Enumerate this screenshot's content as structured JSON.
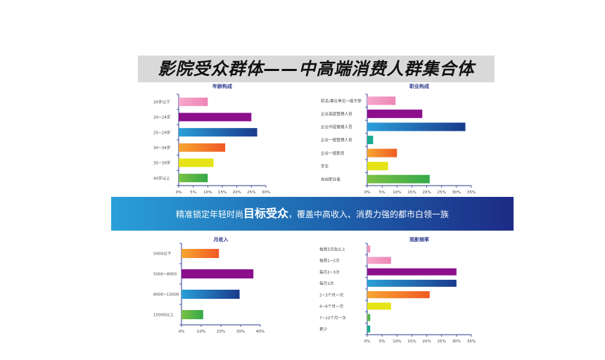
{
  "page": {
    "title": "影院受众群体——中高端消费人群集合体",
    "banner": {
      "pre": "精准锁定年轻时尚",
      "highlight": "目标受众",
      "post": "，覆盖中高收入、消费力强的都市白领一族"
    }
  },
  "colors": {
    "pink": "#ee86b6",
    "purple": "#8c0f8c",
    "blue": "#1a3a8c",
    "teal": "#1bab8e",
    "orange": "#f05a24",
    "yellow": "#e6e317",
    "green": "#34a94a",
    "title_color": "#2b3a8c"
  },
  "chart_data": [
    {
      "type": "bar",
      "orientation": "horizontal",
      "title": "年龄构成",
      "categories": [
        "20岁以下",
        "20~24岁",
        "25~29岁",
        "30~34岁",
        "35~39岁",
        "40岁以上"
      ],
      "values": [
        10,
        25,
        27,
        16,
        12,
        10
      ],
      "colors": [
        "pink",
        "purple",
        "blue",
        "orange",
        "yellow",
        "green"
      ],
      "xlim": [
        0,
        30
      ],
      "xticks": [
        "0%",
        "5%",
        "10%",
        "15%",
        "20%",
        "25%",
        "30%"
      ]
    },
    {
      "type": "bar",
      "orientation": "horizontal",
      "title": "职业构成",
      "categories": [
        "机关/事业单位一般干部",
        "企业高层管理人员",
        "企业中层管理人员",
        "企业一般管理人员",
        "企业一般职员",
        "学生",
        "自由职业者"
      ],
      "values": [
        9.5,
        18.5,
        33,
        2,
        10,
        7,
        21
      ],
      "colors": [
        "pink",
        "purple",
        "blue",
        "teal",
        "orange",
        "yellow",
        "green"
      ],
      "xlim": [
        0,
        35
      ],
      "xticks": [
        "0%",
        "5%",
        "10%",
        "15%",
        "20%",
        "25%",
        "30%",
        "35%"
      ]
    },
    {
      "type": "bar",
      "orientation": "horizontal",
      "title": "月收入",
      "categories": [
        "5000以下",
        "5000~8000",
        "8000~15000",
        "15000以上"
      ],
      "values": [
        19,
        36.5,
        29.5,
        11
      ],
      "colors": [
        "orange",
        "purple",
        "blue",
        "green"
      ],
      "xlim": [
        0,
        40
      ],
      "xticks": [
        "0%",
        "10%",
        "20%",
        "30%",
        "40%"
      ]
    },
    {
      "type": "bar",
      "orientation": "horizontal",
      "title": "观影频率",
      "categories": [
        "每周3次及以上",
        "每周1~2次",
        "每月2~3次",
        "每月1次",
        "2~3个月一次",
        "4~6个月一次",
        "7~12个月一次",
        "更少"
      ],
      "values": [
        1,
        8,
        30,
        30,
        21,
        8,
        1,
        1
      ],
      "colors": [
        "pink",
        "pink",
        "purple",
        "blue",
        "orange",
        "yellow",
        "green",
        "teal"
      ],
      "xlim": [
        0,
        35
      ],
      "xticks": [
        "0%",
        "5%",
        "10%",
        "15%",
        "20%",
        "25%",
        "30%",
        "35%"
      ]
    }
  ]
}
